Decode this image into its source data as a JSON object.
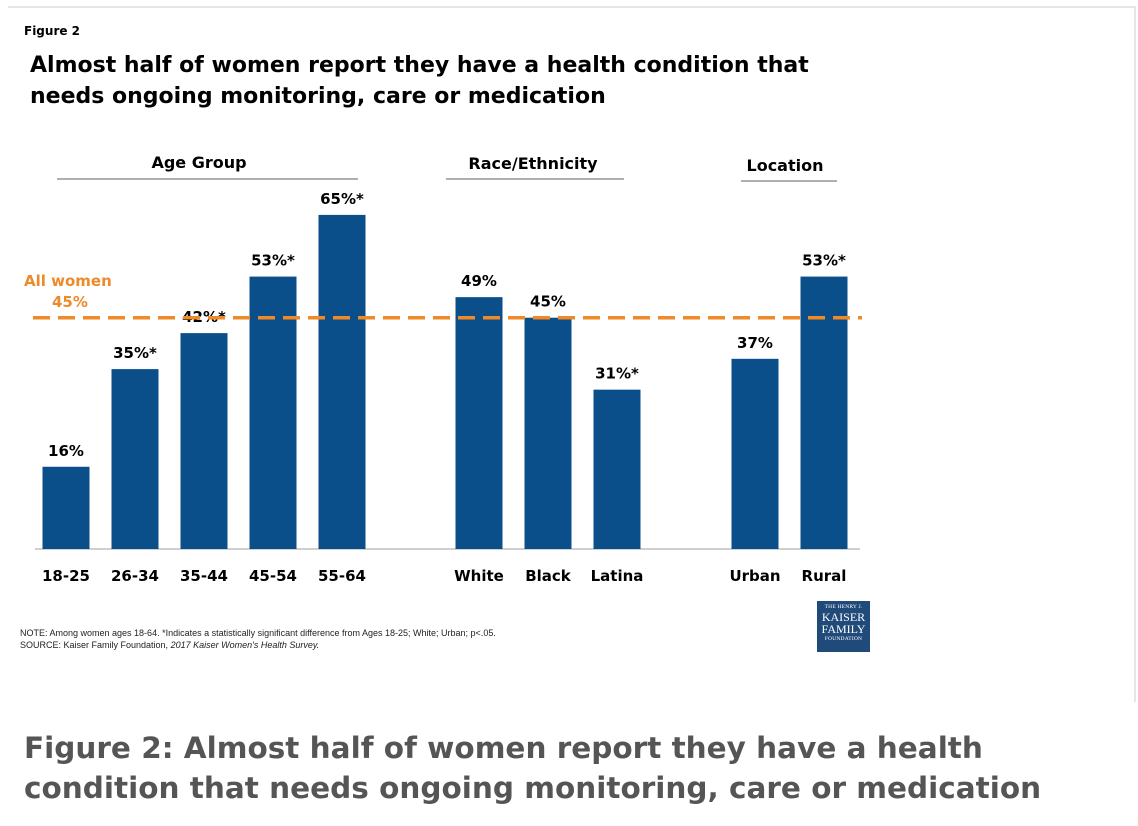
{
  "figure_label": "Figure 2",
  "title_line1": "Almost half of women report they have a health condition that",
  "title_line2": "needs ongoing monitoring, care or medication",
  "chart_data": {
    "type": "bar",
    "groups": [
      {
        "name": "Age Group",
        "categories": [
          "18-25",
          "26-34",
          "35-44",
          "45-54",
          "55-64"
        ],
        "values": [
          16,
          35,
          42,
          53,
          65
        ],
        "labels": [
          "16%",
          "35%*",
          "42%*",
          "53%*",
          "65%*"
        ]
      },
      {
        "name": "Race/Ethnicity",
        "categories": [
          "White",
          "Black",
          "Latina"
        ],
        "values": [
          49,
          45,
          31
        ],
        "labels": [
          "49%",
          "45%",
          "31%*"
        ]
      },
      {
        "name": "Location",
        "categories": [
          "Urban",
          "Rural"
        ],
        "values": [
          37,
          53
        ],
        "labels": [
          "37%",
          "53%*"
        ]
      }
    ],
    "reference_line": {
      "value": 45,
      "label_line1": "All women",
      "label_line2": "45%",
      "color": "#ee8a2a",
      "style": "dashed"
    },
    "bar_color": "#0b4f8a"
  },
  "notes": {
    "note": "NOTE:  Among  women  ages 18-64. *Indicates a statistically significant difference from Ages 18-25; White; Urban; p<.05.",
    "source_prefix": "SOURCE:  Kaiser Family Foundation, ",
    "source_italic": "2017 Kaiser Women's Health Survey."
  },
  "logo": {
    "line1": "THE HENRY J.",
    "line2": "KAISER",
    "line3": "FAMILY",
    "line4": "FOUNDATION"
  },
  "caption": "Figure 2: Almost half of women report they have a health condition that needs ongoing monitoring, care or medication"
}
